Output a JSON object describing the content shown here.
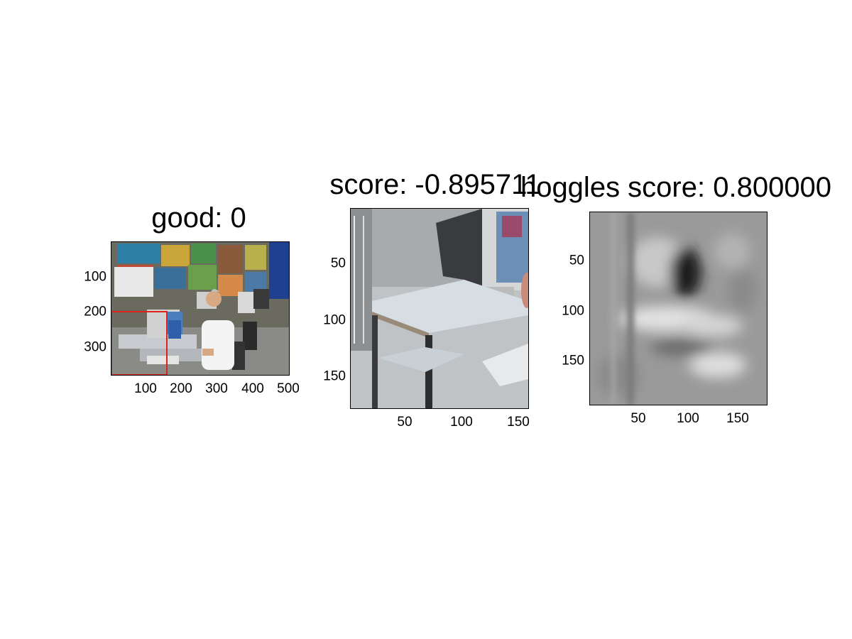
{
  "panels": [
    {
      "id": "left",
      "title": "good: 0",
      "x_ticks": [
        "100",
        "200",
        "300",
        "400",
        "500"
      ],
      "y_ticks": [
        "100",
        "200",
        "300"
      ]
    },
    {
      "id": "middle",
      "title": "score: -0.895711",
      "x_ticks": [
        "50",
        "100",
        "150"
      ],
      "y_ticks": [
        "50",
        "100",
        "150"
      ]
    },
    {
      "id": "right",
      "title": "hoggles score: 0.800000",
      "x_ticks": [
        "50",
        "100",
        "150"
      ],
      "y_ticks": [
        "50",
        "100",
        "150"
      ]
    }
  ],
  "colors": {
    "bbox": "#e0201b"
  }
}
